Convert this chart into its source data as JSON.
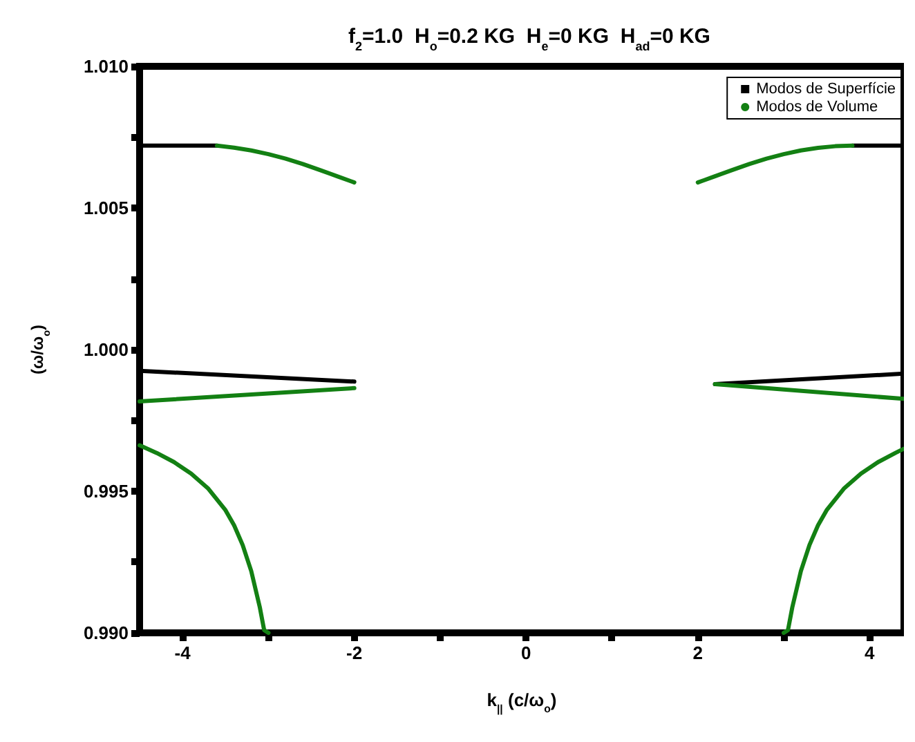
{
  "chart_data": {
    "type": "line",
    "title": "f$_{2}$=1.0  H$_{o}$=0.2 KG  H$_{e}$=0 KG  H$_{ad}$=0 KG",
    "xlabel": "k$_{||}$ (c/ω$_{o}$)",
    "ylabel": "(ω/ω$_{o}$)",
    "xlim": [
      -4.5,
      4.4
    ],
    "ylim": [
      0.99,
      1.01
    ],
    "xticks": [
      -4,
      {
        "value": -3,
        "label": null
      },
      -2,
      {
        "value": -1,
        "label": null
      },
      0,
      {
        "value": 1,
        "label": null
      },
      2,
      {
        "value": 3,
        "label": null
      },
      4
    ],
    "yticks": [
      "0.990",
      {
        "value": 0.9925,
        "label": null
      },
      0.995,
      {
        "value": 0.9975,
        "label": null
      },
      "1.000",
      {
        "value": 1.0025,
        "label": null
      },
      1.005,
      {
        "value": 1.0075,
        "label": null
      },
      "1.010"
    ],
    "legend": "top right",
    "grid": false,
    "series": [
      {
        "name": "Modos de Superfície",
        "color": "#000000",
        "x": [
          -4.5,
          -3.6
        ],
        "values": [
          1.0072,
          1.0072
        ]
      },
      {
        "name": "Modos de Volume",
        "color": "#138013",
        "x": [
          -3.6,
          -3.4,
          -3.2,
          -3.0,
          -2.8,
          -2.6,
          -2.4,
          -2.2,
          -2.0
        ],
        "values": [
          1.0072,
          1.00713,
          1.00703,
          1.0069,
          1.00674,
          1.00655,
          1.00634,
          1.00612,
          1.0059
        ]
      },
      {
        "color": "#000000",
        "x": [
          -4.5,
          -2.0
        ],
        "values": [
          0.99925,
          0.99887
        ]
      },
      {
        "color": "#138013",
        "x": [
          -4.5,
          -2.0
        ],
        "values": [
          0.99817,
          0.99864
        ]
      },
      {
        "color": "#138013",
        "x": [
          -4.5,
          -4.3,
          -4.1,
          -3.9,
          -3.7,
          -3.5,
          -3.4,
          -3.3,
          -3.2,
          -3.1,
          -3.05,
          -3.0
        ],
        "values": [
          0.99662,
          0.99635,
          0.99603,
          0.99562,
          0.99509,
          0.99433,
          0.9938,
          0.9931,
          0.99218,
          0.9909,
          0.9901,
          0.99
        ]
      },
      {
        "color": "#000000",
        "x": [
          3.8,
          4.4
        ],
        "values": [
          1.0072,
          1.0072
        ]
      },
      {
        "color": "#138013",
        "x": [
          2.0,
          2.2,
          2.4,
          2.6,
          2.8,
          3.0,
          3.2,
          3.4,
          3.6,
          3.8
        ],
        "values": [
          1.0059,
          1.00612,
          1.00634,
          1.00655,
          1.00674,
          1.0069,
          1.00703,
          1.00712,
          1.00718,
          1.0072
        ]
      },
      {
        "color": "#000000",
        "x": [
          2.2,
          4.4
        ],
        "values": [
          0.99878,
          0.99915
        ]
      },
      {
        "color": "#138013",
        "x": [
          2.2,
          4.4
        ],
        "values": [
          0.99878,
          0.99826
        ]
      },
      {
        "color": "#138013",
        "x": [
          3.0,
          3.05,
          3.1,
          3.2,
          3.3,
          3.4,
          3.5,
          3.7,
          3.9,
          4.1,
          4.3,
          4.4
        ],
        "values": [
          0.99,
          0.9901,
          0.9909,
          0.99218,
          0.9931,
          0.9938,
          0.99433,
          0.99509,
          0.99562,
          0.99603,
          0.99635,
          0.9965
        ]
      }
    ]
  }
}
